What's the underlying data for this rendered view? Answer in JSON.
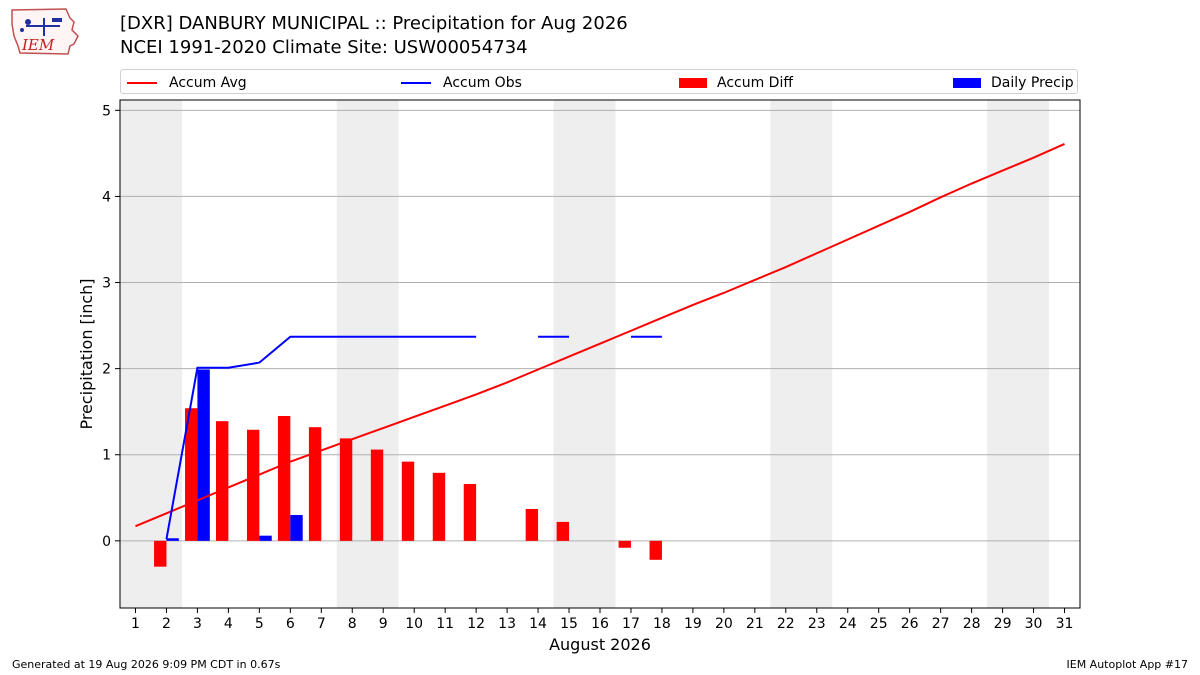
{
  "header": {
    "logo_text": "IEM",
    "title_line1": "[DXR] DANBURY MUNICIPAL :: Precipitation for Aug 2026",
    "title_line2": "NCEI 1991-2020 Climate Site: USW00054734"
  },
  "legend": {
    "items": [
      {
        "label": "Accum Avg",
        "kind": "line",
        "color": "#ff0000"
      },
      {
        "label": "Accum Obs",
        "kind": "line",
        "color": "#0000ff"
      },
      {
        "label": "Accum Diff",
        "kind": "bar",
        "color": "#ff0000"
      },
      {
        "label": "Daily Precip",
        "kind": "bar",
        "color": "#0000ff"
      }
    ]
  },
  "footer": {
    "left": "Generated at 19 Aug 2026 9:09 PM CDT in 0.67s",
    "right": "IEM Autoplot App #17"
  },
  "chart_data": {
    "type": "bar",
    "xlabel": "August 2026",
    "ylabel": "Precipitation [inch]",
    "x": [
      1,
      2,
      3,
      4,
      5,
      6,
      7,
      8,
      9,
      10,
      11,
      12,
      13,
      14,
      15,
      16,
      17,
      18,
      19,
      20,
      21,
      22,
      23,
      24,
      25,
      26,
      27,
      28,
      29,
      30,
      31
    ],
    "x_ticks": [
      "1",
      "2",
      "3",
      "4",
      "5",
      "6",
      "7",
      "8",
      "9",
      "10",
      "11",
      "12",
      "13",
      "14",
      "15",
      "16",
      "17",
      "18",
      "19",
      "20",
      "21",
      "22",
      "23",
      "24",
      "25",
      "26",
      "27",
      "28",
      "29",
      "30",
      "31"
    ],
    "y_ticks": [
      "0",
      "1",
      "2",
      "3",
      "4",
      "5"
    ],
    "xlim": [
      0.5,
      31.5
    ],
    "ylim": [
      -0.78,
      5.12
    ],
    "grid": "horizontal",
    "weekend_shading": [
      [
        0.5,
        2.5
      ],
      [
        7.5,
        9.5
      ],
      [
        14.5,
        16.5
      ],
      [
        21.5,
        23.5
      ],
      [
        28.5,
        30.5
      ]
    ],
    "colors": {
      "avg": "#ff0000",
      "obs": "#0000ff",
      "diff": "#ff0000",
      "daily": "#0000ff",
      "weekend": "#eeeeee",
      "grid": "#b0b0b0"
    },
    "series": [
      {
        "name": "Accum Avg",
        "kind": "line",
        "values": [
          0.17,
          0.32,
          0.47,
          0.62,
          0.77,
          0.92,
          1.05,
          1.18,
          1.31,
          1.44,
          1.57,
          1.7,
          1.84,
          1.99,
          2.14,
          2.29,
          2.44,
          2.59,
          2.74,
          2.88,
          3.03,
          3.18,
          3.34,
          3.5,
          3.66,
          3.82,
          3.99,
          4.15,
          4.3,
          4.45,
          4.61
        ]
      },
      {
        "name": "Accum Obs",
        "kind": "line",
        "values": [
          null,
          0.02,
          2.01,
          2.01,
          2.07,
          2.37,
          2.37,
          2.37,
          2.37,
          2.37,
          2.37,
          2.37,
          null,
          2.37,
          2.37,
          null,
          2.37,
          2.37,
          null,
          null,
          null,
          null,
          null,
          null,
          null,
          null,
          null,
          null,
          null,
          null,
          null
        ]
      },
      {
        "name": "Accum Diff",
        "kind": "bar",
        "values": [
          null,
          -0.3,
          1.54,
          1.39,
          1.29,
          1.45,
          1.32,
          1.19,
          1.06,
          0.92,
          0.79,
          0.66,
          null,
          0.37,
          0.22,
          null,
          -0.08,
          -0.22,
          null,
          null,
          null,
          null,
          null,
          null,
          null,
          null,
          null,
          null,
          null,
          null,
          null
        ]
      },
      {
        "name": "Daily Precip",
        "kind": "bar",
        "values": [
          null,
          0.03,
          1.99,
          0.0,
          0.06,
          0.3,
          0.0,
          0.0,
          0.0,
          0.0,
          0.0,
          0.0,
          null,
          0.0,
          0.0,
          null,
          0.0,
          0.0,
          null,
          null,
          null,
          null,
          null,
          null,
          null,
          null,
          null,
          null,
          null,
          null,
          null
        ]
      }
    ]
  }
}
